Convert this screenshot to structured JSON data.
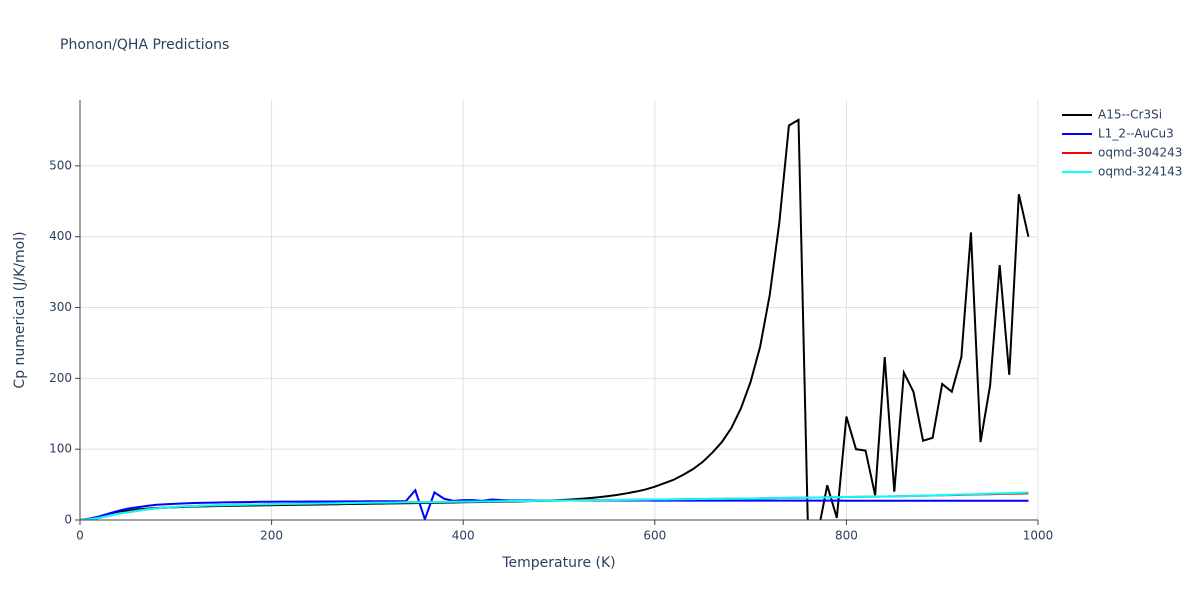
{
  "chart_data": {
    "type": "line",
    "title": "Phonon/QHA Predictions",
    "x_label": "Temperature (K)",
    "y_label": "Cp numerical (J/K/mol)",
    "x": [
      0,
      10,
      20,
      30,
      40,
      50,
      60,
      70,
      80,
      90,
      100,
      110,
      120,
      130,
      140,
      150,
      160,
      170,
      180,
      190,
      200,
      210,
      220,
      230,
      240,
      250,
      260,
      270,
      280,
      290,
      300,
      310,
      320,
      330,
      340,
      350,
      360,
      370,
      380,
      390,
      400,
      410,
      420,
      430,
      440,
      450,
      460,
      470,
      480,
      490,
      500,
      510,
      520,
      530,
      540,
      550,
      560,
      570,
      580,
      590,
      600,
      610,
      620,
      630,
      640,
      650,
      660,
      670,
      680,
      690,
      700,
      710,
      720,
      730,
      740,
      750,
      760,
      770,
      780,
      790,
      800,
      810,
      820,
      830,
      840,
      850,
      860,
      870,
      880,
      890,
      900,
      910,
      920,
      930,
      940,
      950,
      960,
      970,
      980,
      990
    ],
    "series": [
      {
        "name": "A15--Cr3Si",
        "color": "#000000",
        "values": [
          0,
          1,
          4,
          8,
          11,
          13,
          15,
          16,
          17,
          17.5,
          18,
          18.5,
          19,
          19.3,
          19.6,
          19.9,
          20.1,
          20.3,
          20.5,
          20.7,
          20.9,
          21.1,
          21.3,
          21.5,
          21.7,
          21.9,
          22.1,
          22.3,
          22.5,
          22.7,
          22.9,
          23.1,
          23.3,
          23.5,
          23.7,
          23.9,
          24.1,
          24.3,
          24.5,
          24.7,
          25,
          25.2,
          25.4,
          25.6,
          25.8,
          26,
          26.3,
          26.6,
          27,
          27.4,
          28,
          28.7,
          29.6,
          30.7,
          32,
          33.5,
          35.3,
          37.5,
          40,
          43,
          47,
          52,
          57,
          64,
          72,
          82,
          95,
          110,
          130,
          158,
          195,
          245,
          318,
          420,
          557,
          565,
          -20,
          -20,
          49,
          3,
          146,
          100,
          98,
          35,
          230,
          40,
          208,
          181,
          112,
          116,
          192,
          181,
          230,
          406,
          110,
          190,
          360,
          205,
          460,
          400
        ]
      },
      {
        "name": "L1_2--AuCu3",
        "color": "#0000ff",
        "values": [
          0,
          2,
          5,
          9,
          13,
          16,
          18,
          20,
          21.5,
          22.3,
          23,
          23.5,
          24,
          24.3,
          24.6,
          24.9,
          25.1,
          25.3,
          25.5,
          25.7,
          25.8,
          25.9,
          26,
          26,
          26.1,
          26.1,
          26.2,
          26.2,
          26.3,
          26.3,
          26.4,
          26.4,
          26.5,
          26.5,
          26.5,
          42,
          1,
          39,
          30,
          27,
          28,
          28,
          27,
          29,
          28,
          27.5,
          27.5,
          27.5,
          27.5,
          27.5,
          27.5,
          27.5,
          27.5,
          27.5,
          27.5,
          27.5,
          27.5,
          27.5,
          27.5,
          27.5,
          27.4,
          27.4,
          27.4,
          27.4,
          27.4,
          27.4,
          27.4,
          27.4,
          27.4,
          27.4,
          27.3,
          27.3,
          27.3,
          27.3,
          27.3,
          27.3,
          27.3,
          27.3,
          27.3,
          27.3,
          27.2,
          27.2,
          27.2,
          27.2,
          27.2,
          27.2,
          27.2,
          27.2,
          27.2,
          27.2,
          27.1,
          27.1,
          27.1,
          27.1,
          27.1,
          27.1,
          27.1,
          27.1,
          27.1,
          27.1
        ]
      },
      {
        "name": "oqmd-304243",
        "color": "#ff0000",
        "values": [
          0,
          1,
          3,
          6,
          9,
          11,
          13,
          15,
          16.5,
          17.5,
          18.5,
          19.2,
          19.8,
          20.3,
          20.7,
          21,
          21.3,
          21.6,
          21.9,
          22.1,
          22.3,
          22.5,
          22.7,
          22.9,
          23.1,
          23.3,
          23.5,
          23.7,
          23.9,
          24.1,
          24.3,
          24.5,
          24.6,
          24.8,
          25,
          25.1,
          25.3,
          25.4,
          25.6,
          25.7,
          25.9,
          26,
          26.2,
          26.3,
          26.5,
          26.6,
          26.8,
          26.9,
          27.1,
          27.2,
          27.4,
          27.5,
          27.7,
          27.8,
          28,
          28.1,
          28.3,
          28.4,
          28.6,
          28.7,
          28.9,
          29,
          29.2,
          29.3,
          29.5,
          29.6,
          29.8,
          29.9,
          30.1,
          30.2,
          30.4,
          30.6,
          30.8,
          31,
          31.2,
          31.4,
          31.6,
          31.8,
          32,
          32.2,
          32.4,
          32.6,
          32.8,
          33,
          33.2,
          33.4,
          33.7,
          34,
          34.3,
          34.6,
          34.9,
          35.2,
          35.5,
          35.8,
          36.1,
          36.4,
          36.7,
          37,
          37.3,
          37.6
        ]
      },
      {
        "name": "oqmd-324143",
        "color": "#00ffff",
        "values": [
          0,
          1,
          3,
          6,
          9,
          11,
          13,
          15,
          16.5,
          17.5,
          18.5,
          19.2,
          19.8,
          20.3,
          20.7,
          21,
          21.3,
          21.6,
          21.9,
          22.1,
          22.3,
          22.5,
          22.7,
          22.9,
          23.1,
          23.3,
          23.5,
          23.7,
          23.9,
          24.1,
          24.3,
          24.5,
          24.6,
          24.8,
          25,
          25.1,
          25.3,
          25.4,
          25.6,
          25.7,
          25.9,
          26,
          26.2,
          26.3,
          26.5,
          26.6,
          26.8,
          26.9,
          27.1,
          27.2,
          27.4,
          27.5,
          27.7,
          27.8,
          28,
          28.1,
          28.3,
          28.4,
          28.6,
          28.7,
          28.9,
          29,
          29.2,
          29.3,
          29.5,
          29.6,
          29.8,
          29.9,
          30.1,
          30.2,
          30.4,
          30.6,
          30.8,
          31,
          31.2,
          31.4,
          31.6,
          31.8,
          32,
          32.2,
          32.4,
          32.6,
          32.8,
          33,
          33.2,
          33.4,
          33.7,
          34,
          34.3,
          34.6,
          35.2,
          35.6,
          36,
          36.4,
          36.8,
          37.2,
          37.6,
          38,
          38.4,
          38.8
        ]
      }
    ],
    "xlim": [
      0,
      1000
    ],
    "xticks": [
      0,
      200,
      400,
      600,
      800,
      1000
    ],
    "ylim": [
      0,
      593
    ],
    "yticks": [
      0,
      100,
      200,
      300,
      400,
      500
    ],
    "grid": true,
    "legend": "right"
  }
}
